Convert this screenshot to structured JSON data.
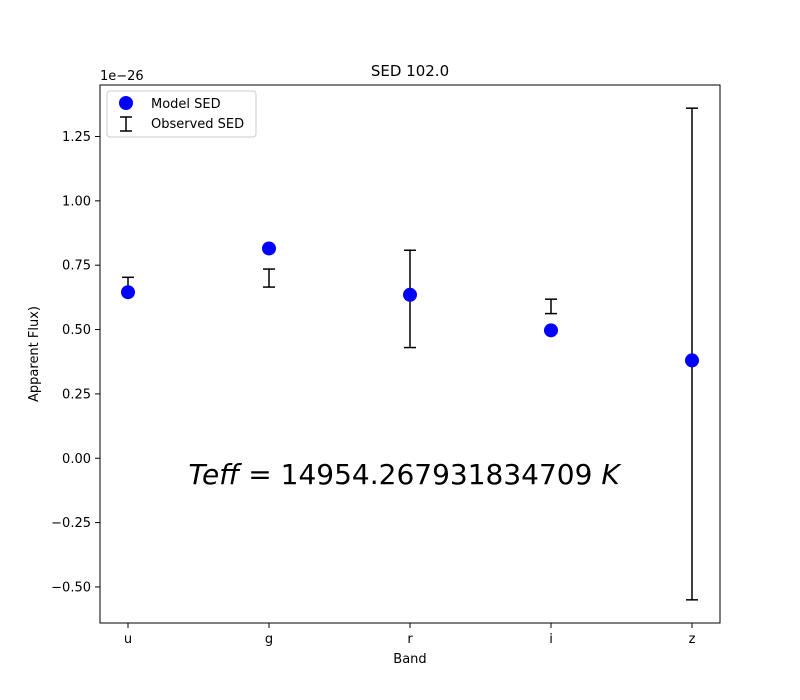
{
  "chart_data": {
    "type": "scatter",
    "title": "SED 102.0",
    "xlabel": "Band",
    "ylabel": "Apparent Flux)",
    "y_scale_label": "1e−26",
    "categories": [
      "u",
      "g",
      "r",
      "i",
      "z"
    ],
    "ylim": [
      -0.64,
      1.45
    ],
    "yticks": [
      -0.5,
      -0.25,
      0.0,
      0.25,
      0.5,
      0.75,
      1.0,
      1.25
    ],
    "ytick_labels": [
      "−0.50",
      "−0.25",
      "0.00",
      "0.25",
      "0.50",
      "0.75",
      "1.00",
      "1.25"
    ],
    "grid": false,
    "legend_position": "upper-left",
    "series": [
      {
        "name": "Model SED",
        "kind": "marker",
        "color": "#0000ff",
        "values": [
          0.645,
          0.815,
          0.635,
          0.497,
          0.38
        ]
      },
      {
        "name": "Observed SED",
        "kind": "errorbar",
        "color": "#000000",
        "lower": [
          0.655,
          0.665,
          0.43,
          0.562,
          -0.55
        ],
        "upper": [
          0.703,
          0.735,
          0.808,
          0.618,
          1.36
        ]
      }
    ],
    "annotation": {
      "lhs": "Teff",
      "equals": " = ",
      "value": "14954.267931834709",
      "unit": "K"
    }
  }
}
